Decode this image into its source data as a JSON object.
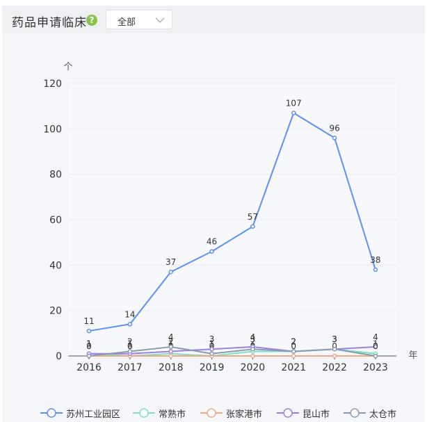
{
  "header": {
    "title": "药品申请临床",
    "help_icon": "question-circle-icon",
    "help_glyph": "?",
    "filter": {
      "selected": "全部"
    }
  },
  "chart_data": {
    "type": "line",
    "x": [
      "2016",
      "2017",
      "2018",
      "2019",
      "2020",
      "2021",
      "2022",
      "2023"
    ],
    "xlabel": "年",
    "ylabel": "个",
    "ylim": [
      0,
      120
    ],
    "yticks": [
      0,
      20,
      40,
      60,
      80,
      100,
      120
    ],
    "grid": true,
    "legend_position": "bottom",
    "series": [
      {
        "name": "苏州工业园区",
        "color": "#5b8ff9",
        "values": [
          11,
          14,
          37,
          46,
          57,
          107,
          96,
          38
        ]
      },
      {
        "name": "常熟市",
        "color": "#7fe0c3",
        "values": [
          1,
          0,
          1,
          0,
          2,
          2,
          3,
          1
        ]
      },
      {
        "name": "张家港市",
        "color": "#f4a582",
        "values": [
          0,
          0,
          0,
          0,
          0,
          0,
          0,
          0
        ]
      },
      {
        "name": "昆山市",
        "color": "#9b7fe6",
        "values": [
          1,
          1,
          2,
          3,
          4,
          2,
          3,
          4
        ]
      },
      {
        "name": "太仓市",
        "color": "#8a9bb0",
        "values": [
          0,
          2,
          4,
          1,
          3,
          2,
          3,
          0
        ]
      }
    ]
  }
}
